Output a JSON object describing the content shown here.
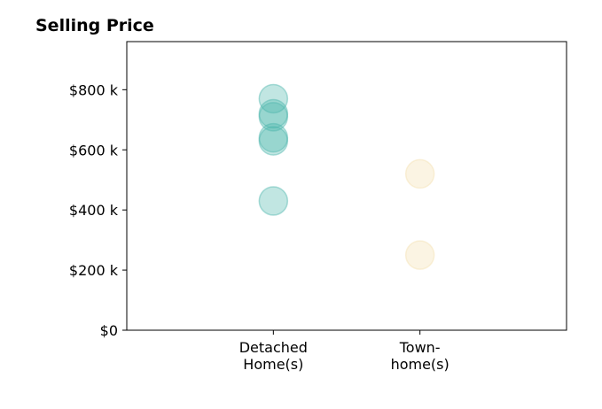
{
  "chart_data": {
    "type": "scatter",
    "title": "Selling Price",
    "xlabel": "",
    "ylabel": "",
    "categories": [
      "Detached\nHome(s)",
      "Town-\nhome(s)"
    ],
    "xlim": [
      0,
      3
    ],
    "ylim": [
      0,
      960000
    ],
    "yticks": [
      0,
      200000,
      400000,
      600000,
      800000
    ],
    "ytick_labels": [
      "$0",
      "$200 k",
      "$400 k",
      "$600 k",
      "$800 k"
    ],
    "grid": false,
    "series": [
      {
        "category": "Detached\nHome(s)",
        "color": "#4db6ac",
        "values": [
          770000,
          720000,
          710000,
          640000,
          630000,
          430000
        ]
      },
      {
        "category": "Town-\nhome(s)",
        "color": "#f3dfb0",
        "values": [
          520000,
          250000
        ]
      }
    ]
  }
}
